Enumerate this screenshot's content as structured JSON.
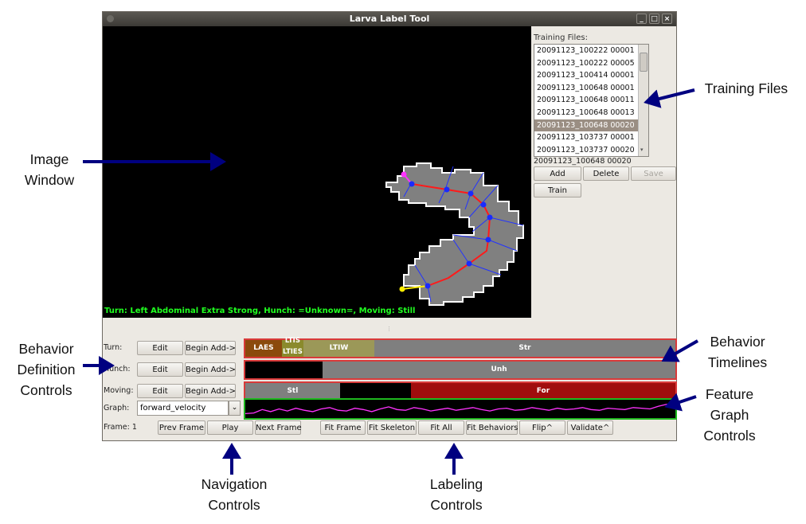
{
  "window": {
    "title": "Larva Label Tool",
    "controls": [
      "_",
      "□",
      "×"
    ]
  },
  "image": {
    "overlay_status": "Turn: Left Abdominal Extra Strong, Hunch: =Unknown=, Moving: Still"
  },
  "training": {
    "label": "Training Files:",
    "files": [
      "20091123_100222 00001",
      "20091123_100222 00005",
      "20091123_100414 00001",
      "20091123_100648 00001",
      "20091123_100648 00011",
      "20091123_100648 00013",
      "20091123_100648 00020",
      "20091123_103737 00001",
      "20091123_103737 00020"
    ],
    "selected_index": 6,
    "current": "20091123_100648 00020",
    "buttons": {
      "add": "Add",
      "delete": "Delete",
      "save": "Save",
      "train": "Train"
    }
  },
  "behaviors": [
    {
      "label": "Turn:",
      "edit": "Edit",
      "begin": "Begin Add->",
      "segments": [
        {
          "text": "LAES",
          "start": 0.0,
          "end": 0.085,
          "color": "#8b4a0c"
        },
        {
          "text": "LTIES",
          "start": 0.085,
          "end": 0.135,
          "color": "#8a8a2c",
          "top_text": "LTIS"
        },
        {
          "text": "LTIW",
          "start": 0.135,
          "end": 0.3,
          "color": "#9b9858"
        },
        {
          "text": "Str",
          "start": 0.3,
          "end": 1.0,
          "color": "#7f7f7f"
        }
      ]
    },
    {
      "label": "Hunch:",
      "edit": "Edit",
      "begin": "Begin Add->",
      "segments": [
        {
          "text": "",
          "start": 0.0,
          "end": 0.18,
          "color": "#000000"
        },
        {
          "text": "Unh",
          "start": 0.18,
          "end": 1.0,
          "color": "#7f7f7f"
        }
      ]
    },
    {
      "label": "Moving:",
      "edit": "Edit",
      "begin": "Begin Add->",
      "segments": [
        {
          "text": "Stl",
          "start": 0.0,
          "end": 0.22,
          "color": "#7f7f7f"
        },
        {
          "text": "",
          "start": 0.22,
          "end": 0.385,
          "color": "#000000"
        },
        {
          "text": "For",
          "start": 0.385,
          "end": 1.0,
          "color": "#a00d0d"
        }
      ]
    }
  ],
  "graph": {
    "label": "Graph:",
    "selected": "forward_velocity",
    "dropdown_icon": "chevron-down-icon",
    "series": [
      0.15,
      0.2,
      0.45,
      0.3,
      0.5,
      0.35,
      0.55,
      0.4,
      0.3,
      0.5,
      0.6,
      0.4,
      0.35,
      0.55,
      0.45,
      0.3,
      0.5,
      0.65,
      0.45,
      0.4,
      0.6,
      0.5,
      0.35,
      0.45,
      0.55,
      0.4,
      0.5,
      0.6,
      0.45,
      0.35,
      0.5,
      0.55,
      0.4,
      0.45,
      0.6,
      0.5,
      0.4,
      0.55,
      0.45,
      0.5,
      0.6,
      0.45,
      0.4,
      0.55,
      0.5,
      0.45,
      0.6,
      0.55,
      0.5,
      0.7,
      0.85,
      0.95
    ],
    "line_color": "#ff33ff"
  },
  "frame": {
    "label": "Frame: 1"
  },
  "navigation": {
    "prev": "Prev Frame",
    "play": "Play",
    "next": "Next Frame"
  },
  "labeling": {
    "fit_frame": "Fit Frame",
    "fit_skeleton": "Fit Skeleton",
    "fit_all": "Fit All",
    "fit_behaviors": "Fit Behaviors",
    "flip": "Flip^",
    "validate": "Validate^"
  },
  "annotations": {
    "image_window": [
      "Image",
      "Window"
    ],
    "training_files": "Training Files",
    "behavior_definition": [
      "Behavior",
      "Definition",
      "Controls"
    ],
    "behavior_timelines": [
      "Behavior",
      "Timelines"
    ],
    "feature_graph": [
      "Feature",
      "Graph",
      "Controls"
    ],
    "navigation": [
      "Navigation",
      "Controls"
    ],
    "labeling": [
      "Labeling",
      "Controls"
    ],
    "arrow_color": "#000080"
  }
}
